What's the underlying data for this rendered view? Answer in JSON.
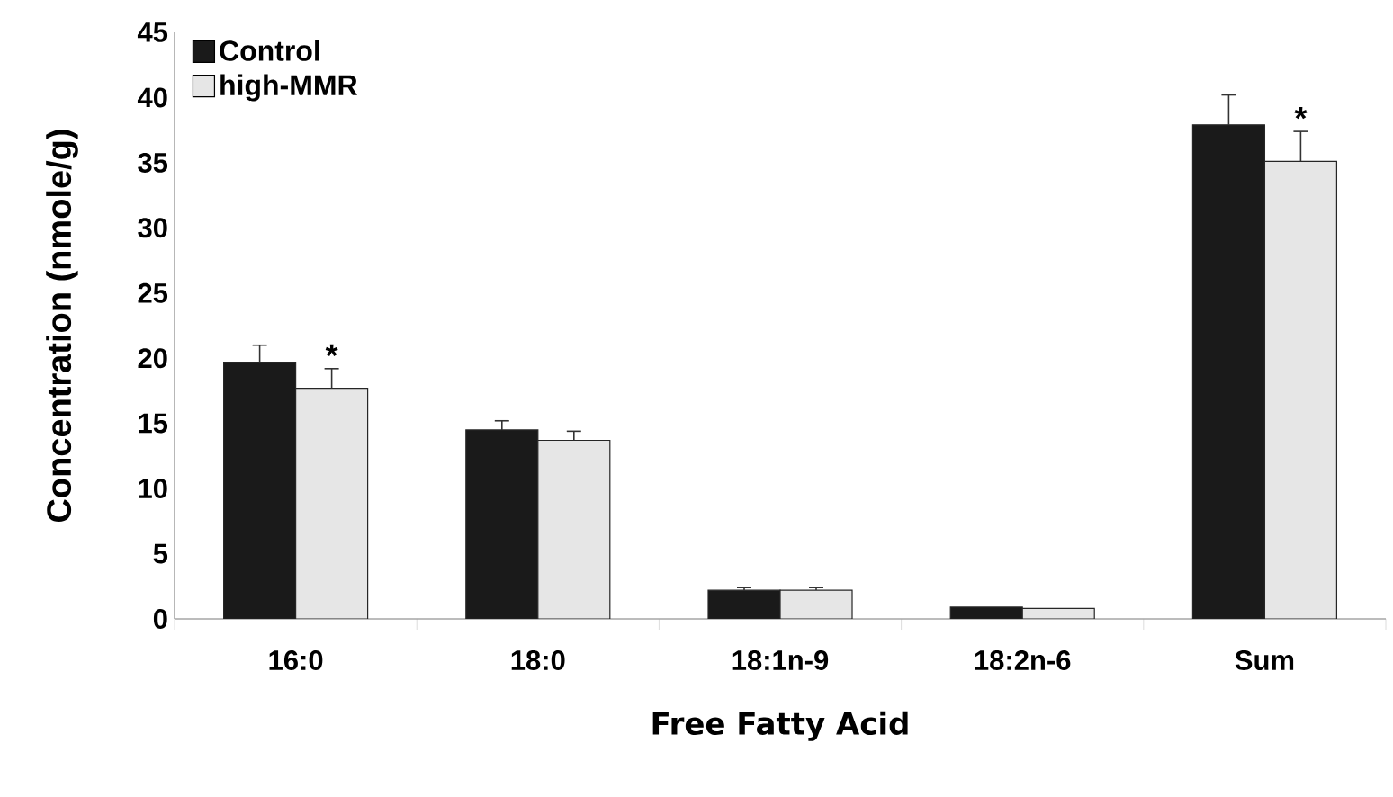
{
  "chart_data": {
    "type": "bar",
    "xlabel": "Free Fatty Acid",
    "ylabel": "Concentration (nmole/g)",
    "categories": [
      "16:0",
      "18:0",
      "18:1n-9",
      "18:2n-6",
      "Sum"
    ],
    "series": [
      {
        "name": "Control",
        "color": "#1a1a1a",
        "values": [
          19.7,
          14.5,
          2.2,
          0.9,
          37.9
        ],
        "errors": [
          1.3,
          0.7,
          0.2,
          null,
          2.3
        ]
      },
      {
        "name": "high-MMR",
        "color": "#e6e6e6",
        "values": [
          17.7,
          13.7,
          2.2,
          0.8,
          35.1
        ],
        "errors": [
          1.5,
          0.7,
          0.2,
          null,
          2.3
        ]
      }
    ],
    "ylim": [
      0,
      45
    ],
    "yticks": [
      0,
      5,
      10,
      15,
      20,
      25,
      30,
      35,
      40,
      45
    ],
    "legend": "top left",
    "grid": false,
    "annotations": [
      {
        "text": "*",
        "x": "16:0",
        "y": 19.2
      },
      {
        "text": "*",
        "x": "Sum",
        "y": 37.4
      }
    ]
  }
}
